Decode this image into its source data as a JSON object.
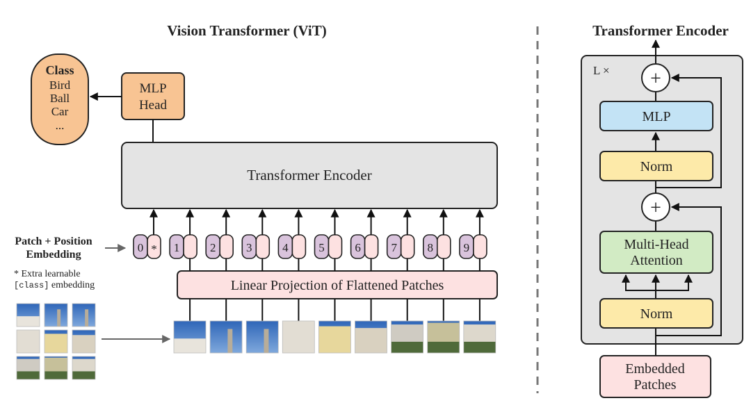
{
  "vit": {
    "title": "Vision Transformer (ViT)",
    "class_box": {
      "heading": "Class",
      "items": [
        "Bird",
        "Ball",
        "Car",
        "..."
      ]
    },
    "mlp_head": [
      "MLP",
      "Head"
    ],
    "encoder_label": "Transformer Encoder",
    "embedding_label": [
      "Patch + Position",
      "Embedding"
    ],
    "extra_note": {
      "line1": "* Extra learnable",
      "code": "[class]",
      "line2": " embedding"
    },
    "tokens": [
      "0",
      "1",
      "2",
      "3",
      "4",
      "5",
      "6",
      "7",
      "8",
      "9"
    ],
    "class_token_marker": "*",
    "projection_label": "Linear Projection of Flattened Patches"
  },
  "encoder_detail": {
    "title": "Transformer Encoder",
    "repeat_label": "L ×",
    "plus": "+",
    "mlp": "MLP",
    "norm": "Norm",
    "attention": [
      "Multi-Head",
      "Attention"
    ],
    "input": [
      "Embedded",
      "Patches"
    ]
  },
  "colors": {
    "orange": "#f8c493",
    "gray": "#e4e4e4",
    "purple": "#d9c3dc",
    "pink": "#fde1e1",
    "blue": "#c3e3f5",
    "yellow": "#fdeaa9",
    "green": "#d2ebc4"
  }
}
